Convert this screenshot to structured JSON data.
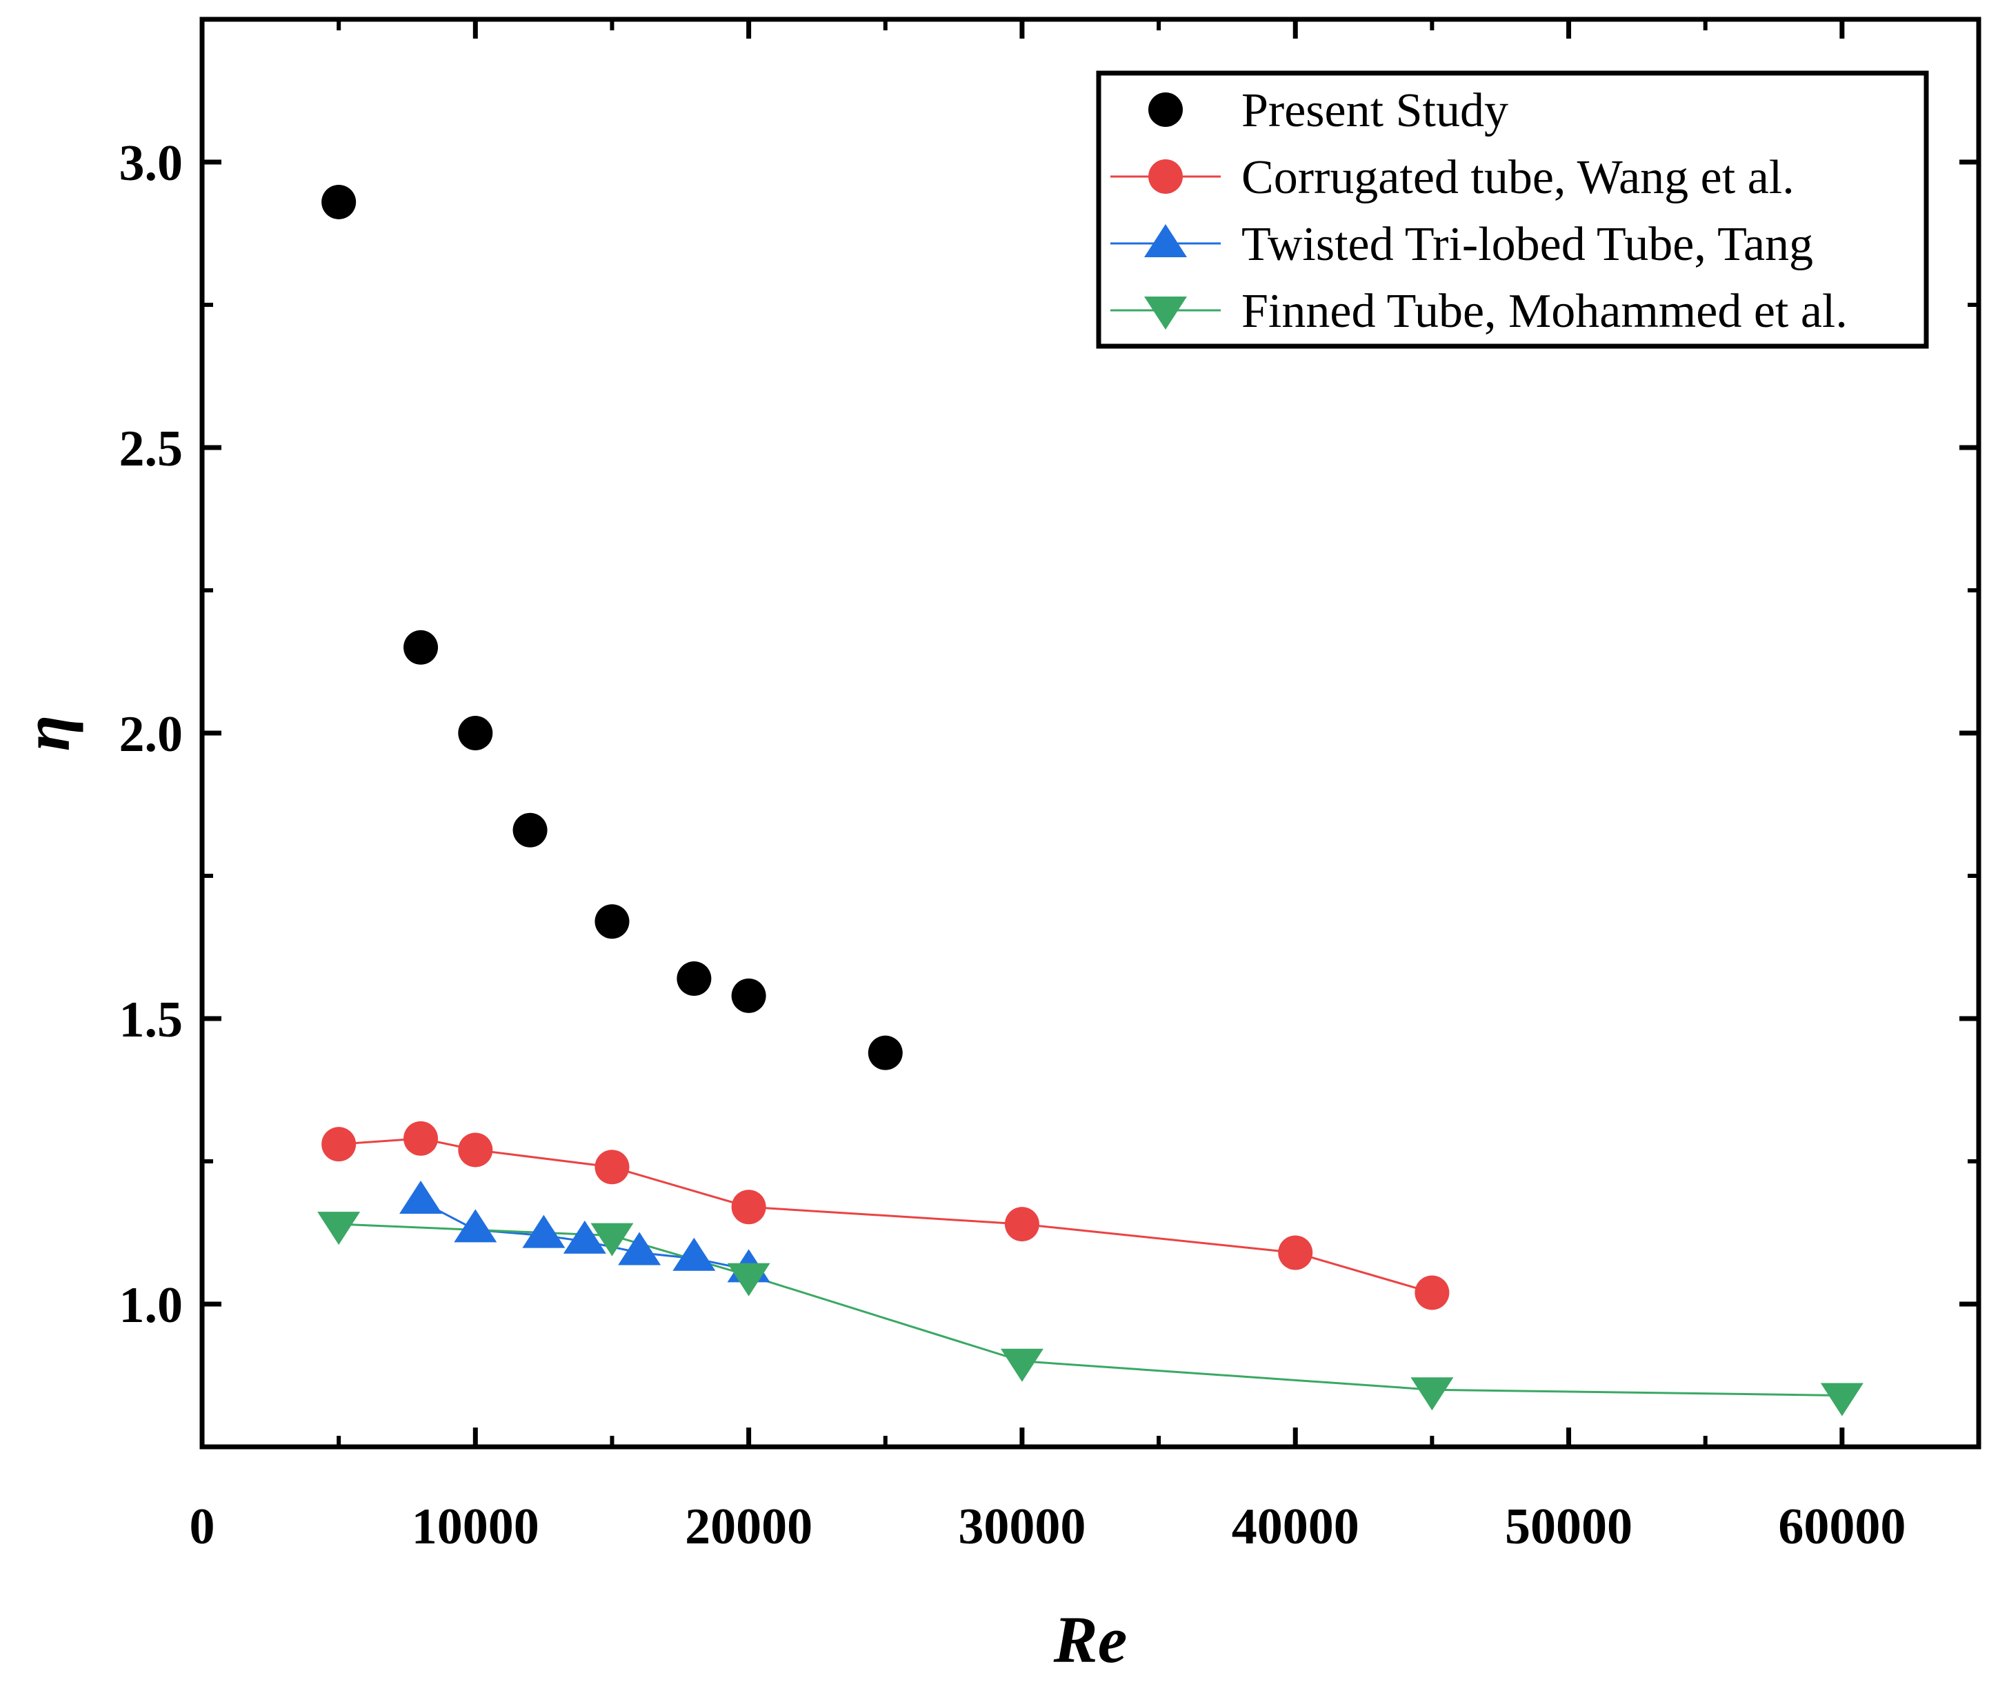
{
  "chart_data": {
    "type": "scatter",
    "title": "",
    "xlabel": "Re",
    "ylabel": "η",
    "xlim": [
      0,
      65000
    ],
    "ylim": [
      0.75,
      3.25
    ],
    "xticks": [
      0,
      10000,
      20000,
      30000,
      40000,
      50000,
      60000
    ],
    "xtick_labels": [
      "0",
      "10000",
      "20000",
      "30000",
      "40000",
      "50000",
      "60000"
    ],
    "yticks": [
      1.0,
      1.5,
      2.0,
      2.5,
      3.0
    ],
    "ytick_labels": [
      "1.0",
      "1.5",
      "2.0",
      "2.5",
      "3.0"
    ],
    "grid": false,
    "legend_position": "top-right",
    "series": [
      {
        "name": "Present Study",
        "marker": "circle",
        "line": false,
        "color": "#000000",
        "x": [
          5000,
          8000,
          10000,
          12000,
          15000,
          18000,
          20000,
          25000
        ],
        "y": [
          2.93,
          2.15,
          2.0,
          1.83,
          1.67,
          1.57,
          1.54,
          1.44
        ]
      },
      {
        "name": "Corrugated tube, Wang et al.",
        "marker": "circle",
        "line": true,
        "color": "#ea4343",
        "x": [
          5000,
          8000,
          10000,
          15000,
          20000,
          30000,
          40000,
          45000
        ],
        "y": [
          1.28,
          1.29,
          1.27,
          1.24,
          1.17,
          1.14,
          1.09,
          1.02
        ]
      },
      {
        "name": "Twisted Tri-lobed Tube, Tang",
        "marker": "triangle-up",
        "line": true,
        "color": "#1f6fe0",
        "x": [
          8000,
          10000,
          12500,
          14000,
          16000,
          18000,
          20000
        ],
        "y": [
          1.18,
          1.13,
          1.12,
          1.11,
          1.09,
          1.08,
          1.06
        ]
      },
      {
        "name": "Finned Tube, Mohammed et al.",
        "marker": "triangle-down",
        "line": true,
        "color": "#3aa864",
        "x": [
          5000,
          15000,
          20000,
          30000,
          45000,
          60000
        ],
        "y": [
          1.14,
          1.12,
          1.05,
          0.9,
          0.85,
          0.84
        ]
      }
    ]
  }
}
